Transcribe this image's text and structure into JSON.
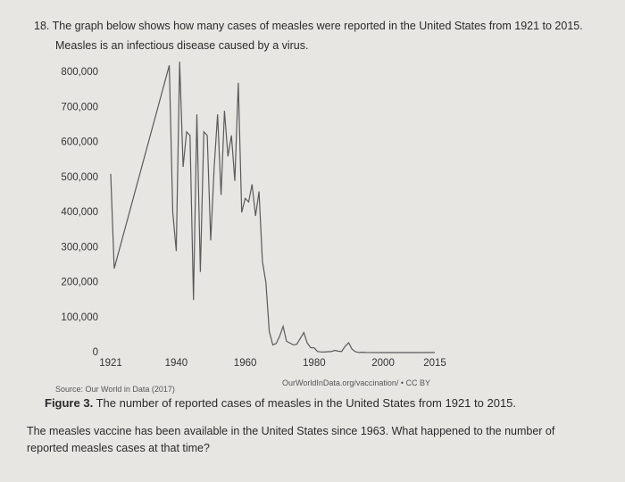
{
  "question_intro": {
    "number": "18.",
    "line1": "The graph below shows how many cases of measles were reported in the United States from 1921 to 2015.",
    "line2": "Measles is an infectious disease caused by a virus."
  },
  "chart_data": {
    "type": "line",
    "color": "#5a5a5a",
    "grid": false,
    "x": [
      1921,
      1922,
      1938,
      1939,
      1940,
      1941,
      1942,
      1943,
      1944,
      1945,
      1946,
      1947,
      1948,
      1949,
      1950,
      1951,
      1952,
      1953,
      1954,
      1955,
      1956,
      1957,
      1958,
      1959,
      1960,
      1961,
      1962,
      1963,
      1964,
      1965,
      1966,
      1967,
      1968,
      1969,
      1970,
      1971,
      1972,
      1973,
      1974,
      1975,
      1976,
      1977,
      1978,
      1979,
      1980,
      1981,
      1982,
      1983,
      1984,
      1985,
      1986,
      1987,
      1988,
      1989,
      1990,
      1991,
      1992,
      1993,
      1994,
      1995,
      2000,
      2005,
      2010,
      2015
    ],
    "values": [
      510000,
      240000,
      820000,
      400000,
      290000,
      830000,
      530000,
      630000,
      620000,
      150000,
      680000,
      230000,
      630000,
      620000,
      320000,
      530000,
      680000,
      450000,
      690000,
      560000,
      620000,
      490000,
      770000,
      400000,
      440000,
      430000,
      480000,
      390000,
      460000,
      260000,
      200000,
      60000,
      22000,
      26000,
      47000,
      75000,
      32000,
      27000,
      22000,
      24000,
      41000,
      57000,
      27000,
      14000,
      13500,
      3000,
      1700,
      1500,
      2600,
      2800,
      6300,
      3700,
      3400,
      18000,
      28000,
      9600,
      2200,
      300,
      960,
      300,
      86,
      66,
      63,
      188
    ],
    "xlim": [
      1921,
      2015
    ],
    "ylim": [
      0,
      800000
    ],
    "xticks": [
      1921,
      1940,
      1960,
      1980,
      2000,
      2015
    ],
    "yticks": [
      0,
      {
        "value": 100000,
        "label": "100,000"
      },
      {
        "value": 200000,
        "label": "200,000"
      },
      {
        "value": 300000,
        "label": "300,000"
      },
      {
        "value": 400000,
        "label": "400,000"
      },
      {
        "value": 500000,
        "label": "500,000"
      },
      {
        "value": 600000,
        "label": "600,000"
      },
      {
        "value": 700000,
        "label": "700,000"
      },
      {
        "value": 800000,
        "label": "800,000"
      }
    ]
  },
  "source": "Source: Our World in Data (2017)",
  "credit": "OurWorldInData.org/vaccination/ • CC BY",
  "caption": {
    "label": "Figure 3.",
    "text": "The number of reported cases of measles in the United States from 1921 to 2015."
  },
  "question": "The measles vaccine has been available in the United States since 1963. What happened to the number of reported measles cases at that time?"
}
